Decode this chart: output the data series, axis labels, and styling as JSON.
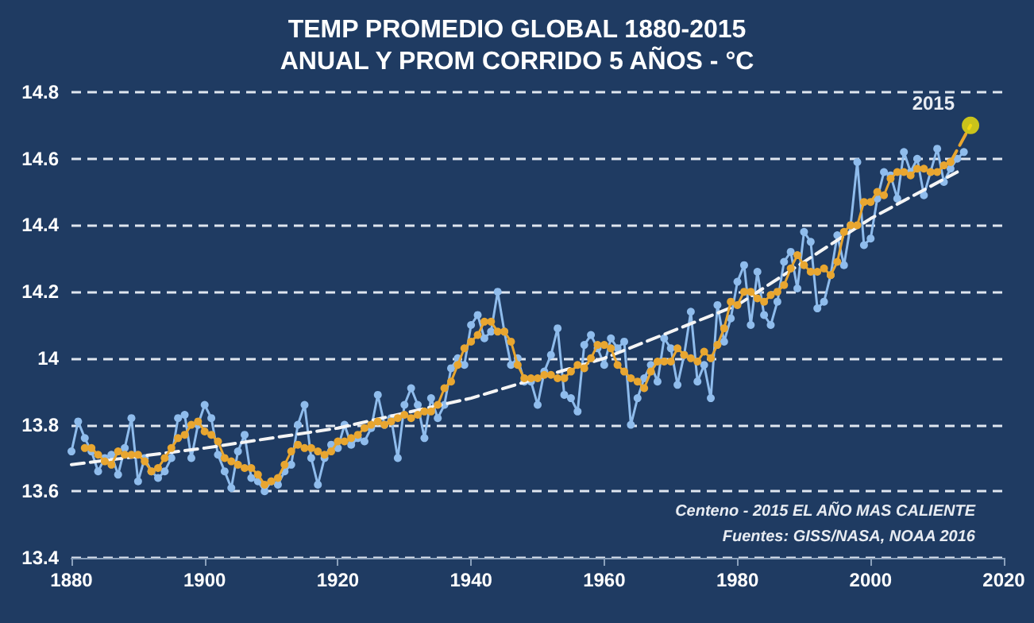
{
  "chart_data": {
    "type": "line",
    "title": "TEMP PROMEDIO GLOBAL 1880-2015",
    "subtitle": "ANUAL Y PROM CORRIDO 5 AÑOS - °C",
    "annotations": [
      {
        "text": "2015",
        "x": 2015,
        "y": 14.7
      },
      "Centeno - 2015 EL AÑO MAS CALIENTE",
      "Fuentes: GISS/NASA, NOAA 2016"
    ],
    "xlim": [
      1880,
      2020
    ],
    "xticks": [
      1880,
      1900,
      1920,
      1940,
      1960,
      1980,
      2000,
      2020
    ],
    "ylim": [
      13.4,
      14.8
    ],
    "yticks": [
      13.4,
      13.6,
      13.8,
      14.0,
      14.2,
      14.4,
      14.6,
      14.8
    ],
    "grid": "y",
    "series": [
      {
        "color": "#8fbcec",
        "marker": "circle",
        "line_style": "solid",
        "x": [
          1880,
          1881,
          1882,
          1883,
          1884,
          1885,
          1886,
          1887,
          1888,
          1889,
          1890,
          1891,
          1892,
          1893,
          1894,
          1895,
          1896,
          1897,
          1898,
          1899,
          1900,
          1901,
          1902,
          1903,
          1904,
          1905,
          1906,
          1907,
          1908,
          1909,
          1910,
          1911,
          1912,
          1913,
          1914,
          1915,
          1916,
          1917,
          1918,
          1919,
          1920,
          1921,
          1922,
          1923,
          1924,
          1925,
          1926,
          1927,
          1928,
          1929,
          1930,
          1931,
          1932,
          1933,
          1934,
          1935,
          1936,
          1937,
          1938,
          1939,
          1940,
          1941,
          1942,
          1943,
          1944,
          1945,
          1946,
          1947,
          1948,
          1949,
          1950,
          1951,
          1952,
          1953,
          1954,
          1955,
          1956,
          1957,
          1958,
          1959,
          1960,
          1961,
          1962,
          1963,
          1964,
          1965,
          1966,
          1967,
          1968,
          1969,
          1970,
          1971,
          1972,
          1973,
          1974,
          1975,
          1976,
          1977,
          1978,
          1979,
          1980,
          1981,
          1982,
          1983,
          1984,
          1985,
          1986,
          1987,
          1988,
          1989,
          1990,
          1991,
          1992,
          1993,
          1994,
          1995,
          1996,
          1997,
          1998,
          1999,
          2000,
          2001,
          2002,
          2003,
          2004,
          2005,
          2006,
          2007,
          2008,
          2009,
          2010,
          2011,
          2012,
          2013,
          2014
        ],
        "values": [
          13.72,
          13.81,
          13.76,
          13.72,
          13.66,
          13.7,
          13.71,
          13.65,
          13.73,
          13.82,
          13.63,
          13.7,
          13.66,
          13.64,
          13.66,
          13.7,
          13.82,
          13.83,
          13.7,
          13.8,
          13.86,
          13.82,
          13.71,
          13.66,
          13.61,
          13.72,
          13.77,
          13.64,
          13.63,
          13.6,
          13.63,
          13.62,
          13.66,
          13.68,
          13.8,
          13.86,
          13.7,
          13.62,
          13.7,
          13.74,
          13.73,
          13.8,
          13.74,
          13.76,
          13.75,
          13.79,
          13.89,
          13.8,
          13.82,
          13.7,
          13.86,
          13.91,
          13.86,
          13.76,
          13.88,
          13.82,
          13.86,
          13.97,
          14.0,
          13.98,
          14.1,
          14.13,
          14.06,
          14.08,
          14.2,
          14.08,
          13.98,
          14.0,
          13.93,
          13.93,
          13.86,
          13.96,
          14.01,
          14.09,
          13.89,
          13.88,
          13.84,
          14.04,
          14.07,
          14.03,
          13.98,
          14.06,
          14.03,
          14.05,
          13.8,
          13.88,
          13.94,
          13.98,
          13.93,
          14.06,
          14.03,
          13.92,
          14.01,
          14.14,
          13.93,
          13.98,
          13.88,
          14.16,
          14.05,
          14.12,
          14.23,
          14.28,
          14.1,
          14.26,
          14.13,
          14.1,
          14.17,
          14.29,
          14.32,
          14.21,
          14.38,
          14.35,
          14.15,
          14.17,
          14.25,
          14.37,
          14.28,
          14.4,
          14.59,
          14.34,
          14.36,
          14.48,
          14.56,
          14.55,
          14.48,
          14.62,
          14.56,
          14.6,
          14.49,
          14.56,
          14.63,
          14.53,
          14.57,
          14.6,
          14.62
        ]
      },
      {
        "color": "#f5f5f5",
        "marker": "none",
        "line_style": "dashed",
        "x": [
          1880,
          1900,
          1920,
          1940,
          1960,
          1980,
          2000,
          2013
        ],
        "values": [
          13.68,
          13.73,
          13.79,
          13.88,
          14.0,
          14.16,
          14.42,
          14.56
        ]
      },
      {
        "color": "#e8a630",
        "marker": "circle",
        "line_style": "solid",
        "x": [
          1882,
          1883,
          1884,
          1885,
          1886,
          1887,
          1888,
          1889,
          1890,
          1891,
          1892,
          1893,
          1894,
          1895,
          1896,
          1897,
          1898,
          1899,
          1900,
          1901,
          1902,
          1903,
          1904,
          1905,
          1906,
          1907,
          1908,
          1909,
          1910,
          1911,
          1912,
          1913,
          1914,
          1915,
          1916,
          1917,
          1918,
          1919,
          1920,
          1921,
          1922,
          1923,
          1924,
          1925,
          1926,
          1927,
          1928,
          1929,
          1930,
          1931,
          1932,
          1933,
          1934,
          1935,
          1936,
          1937,
          1938,
          1939,
          1940,
          1941,
          1942,
          1943,
          1944,
          1945,
          1946,
          1947,
          1948,
          1949,
          1950,
          1951,
          1952,
          1953,
          1954,
          1955,
          1956,
          1957,
          1958,
          1959,
          1960,
          1961,
          1962,
          1963,
          1964,
          1965,
          1966,
          1967,
          1968,
          1969,
          1970,
          1971,
          1972,
          1973,
          1974,
          1975,
          1976,
          1977,
          1978,
          1979,
          1980,
          1981,
          1982,
          1983,
          1984,
          1985,
          1986,
          1987,
          1988,
          1989,
          1990,
          1991,
          1992,
          1993,
          1994,
          1995,
          1996,
          1997,
          1998,
          1999,
          2000,
          2001,
          2002,
          2003,
          2004,
          2005,
          2006,
          2007,
          2008,
          2009,
          2010,
          2011,
          2012
        ],
        "values": [
          13.73,
          13.73,
          13.71,
          13.69,
          13.68,
          13.72,
          13.71,
          13.71,
          13.71,
          13.69,
          13.66,
          13.67,
          13.7,
          13.73,
          13.76,
          13.77,
          13.8,
          13.81,
          13.78,
          13.77,
          13.75,
          13.7,
          13.69,
          13.68,
          13.67,
          13.67,
          13.65,
          13.62,
          13.63,
          13.64,
          13.68,
          13.72,
          13.74,
          13.73,
          13.73,
          13.72,
          13.71,
          13.72,
          13.75,
          13.75,
          13.76,
          13.77,
          13.79,
          13.8,
          13.81,
          13.8,
          13.81,
          13.82,
          13.83,
          13.82,
          13.83,
          13.84,
          13.84,
          13.86,
          13.91,
          13.93,
          13.98,
          14.03,
          14.05,
          14.07,
          14.11,
          14.11,
          14.08,
          14.08,
          14.05,
          13.98,
          13.94,
          13.94,
          13.94,
          13.95,
          13.95,
          13.94,
          13.94,
          13.96,
          13.98,
          13.97,
          14.0,
          14.04,
          14.04,
          14.03,
          13.98,
          13.96,
          13.94,
          13.93,
          13.91,
          13.96,
          13.99,
          13.99,
          13.99,
          14.03,
          14.01,
          14.0,
          13.99,
          14.02,
          14.0,
          14.04,
          14.09,
          14.17,
          14.16,
          14.2,
          14.2,
          14.18,
          14.17,
          14.19,
          14.2,
          14.22,
          14.27,
          14.31,
          14.28,
          14.26,
          14.26,
          14.27,
          14.25,
          14.29,
          14.38,
          14.4,
          14.4,
          14.47,
          14.47,
          14.5,
          14.49,
          14.54,
          14.56,
          14.56,
          14.55,
          14.57,
          14.57,
          14.56,
          14.56,
          14.58,
          14.59
        ]
      },
      {
        "color": "#e8a630",
        "marker": "none",
        "line_style": "dashed",
        "x": [
          2012,
          2015
        ],
        "values": [
          14.59,
          14.7
        ]
      },
      {
        "type": "scatter",
        "color": "#f5e60a",
        "marker": "circle",
        "x": [
          2015
        ],
        "values": [
          14.7
        ]
      }
    ]
  }
}
